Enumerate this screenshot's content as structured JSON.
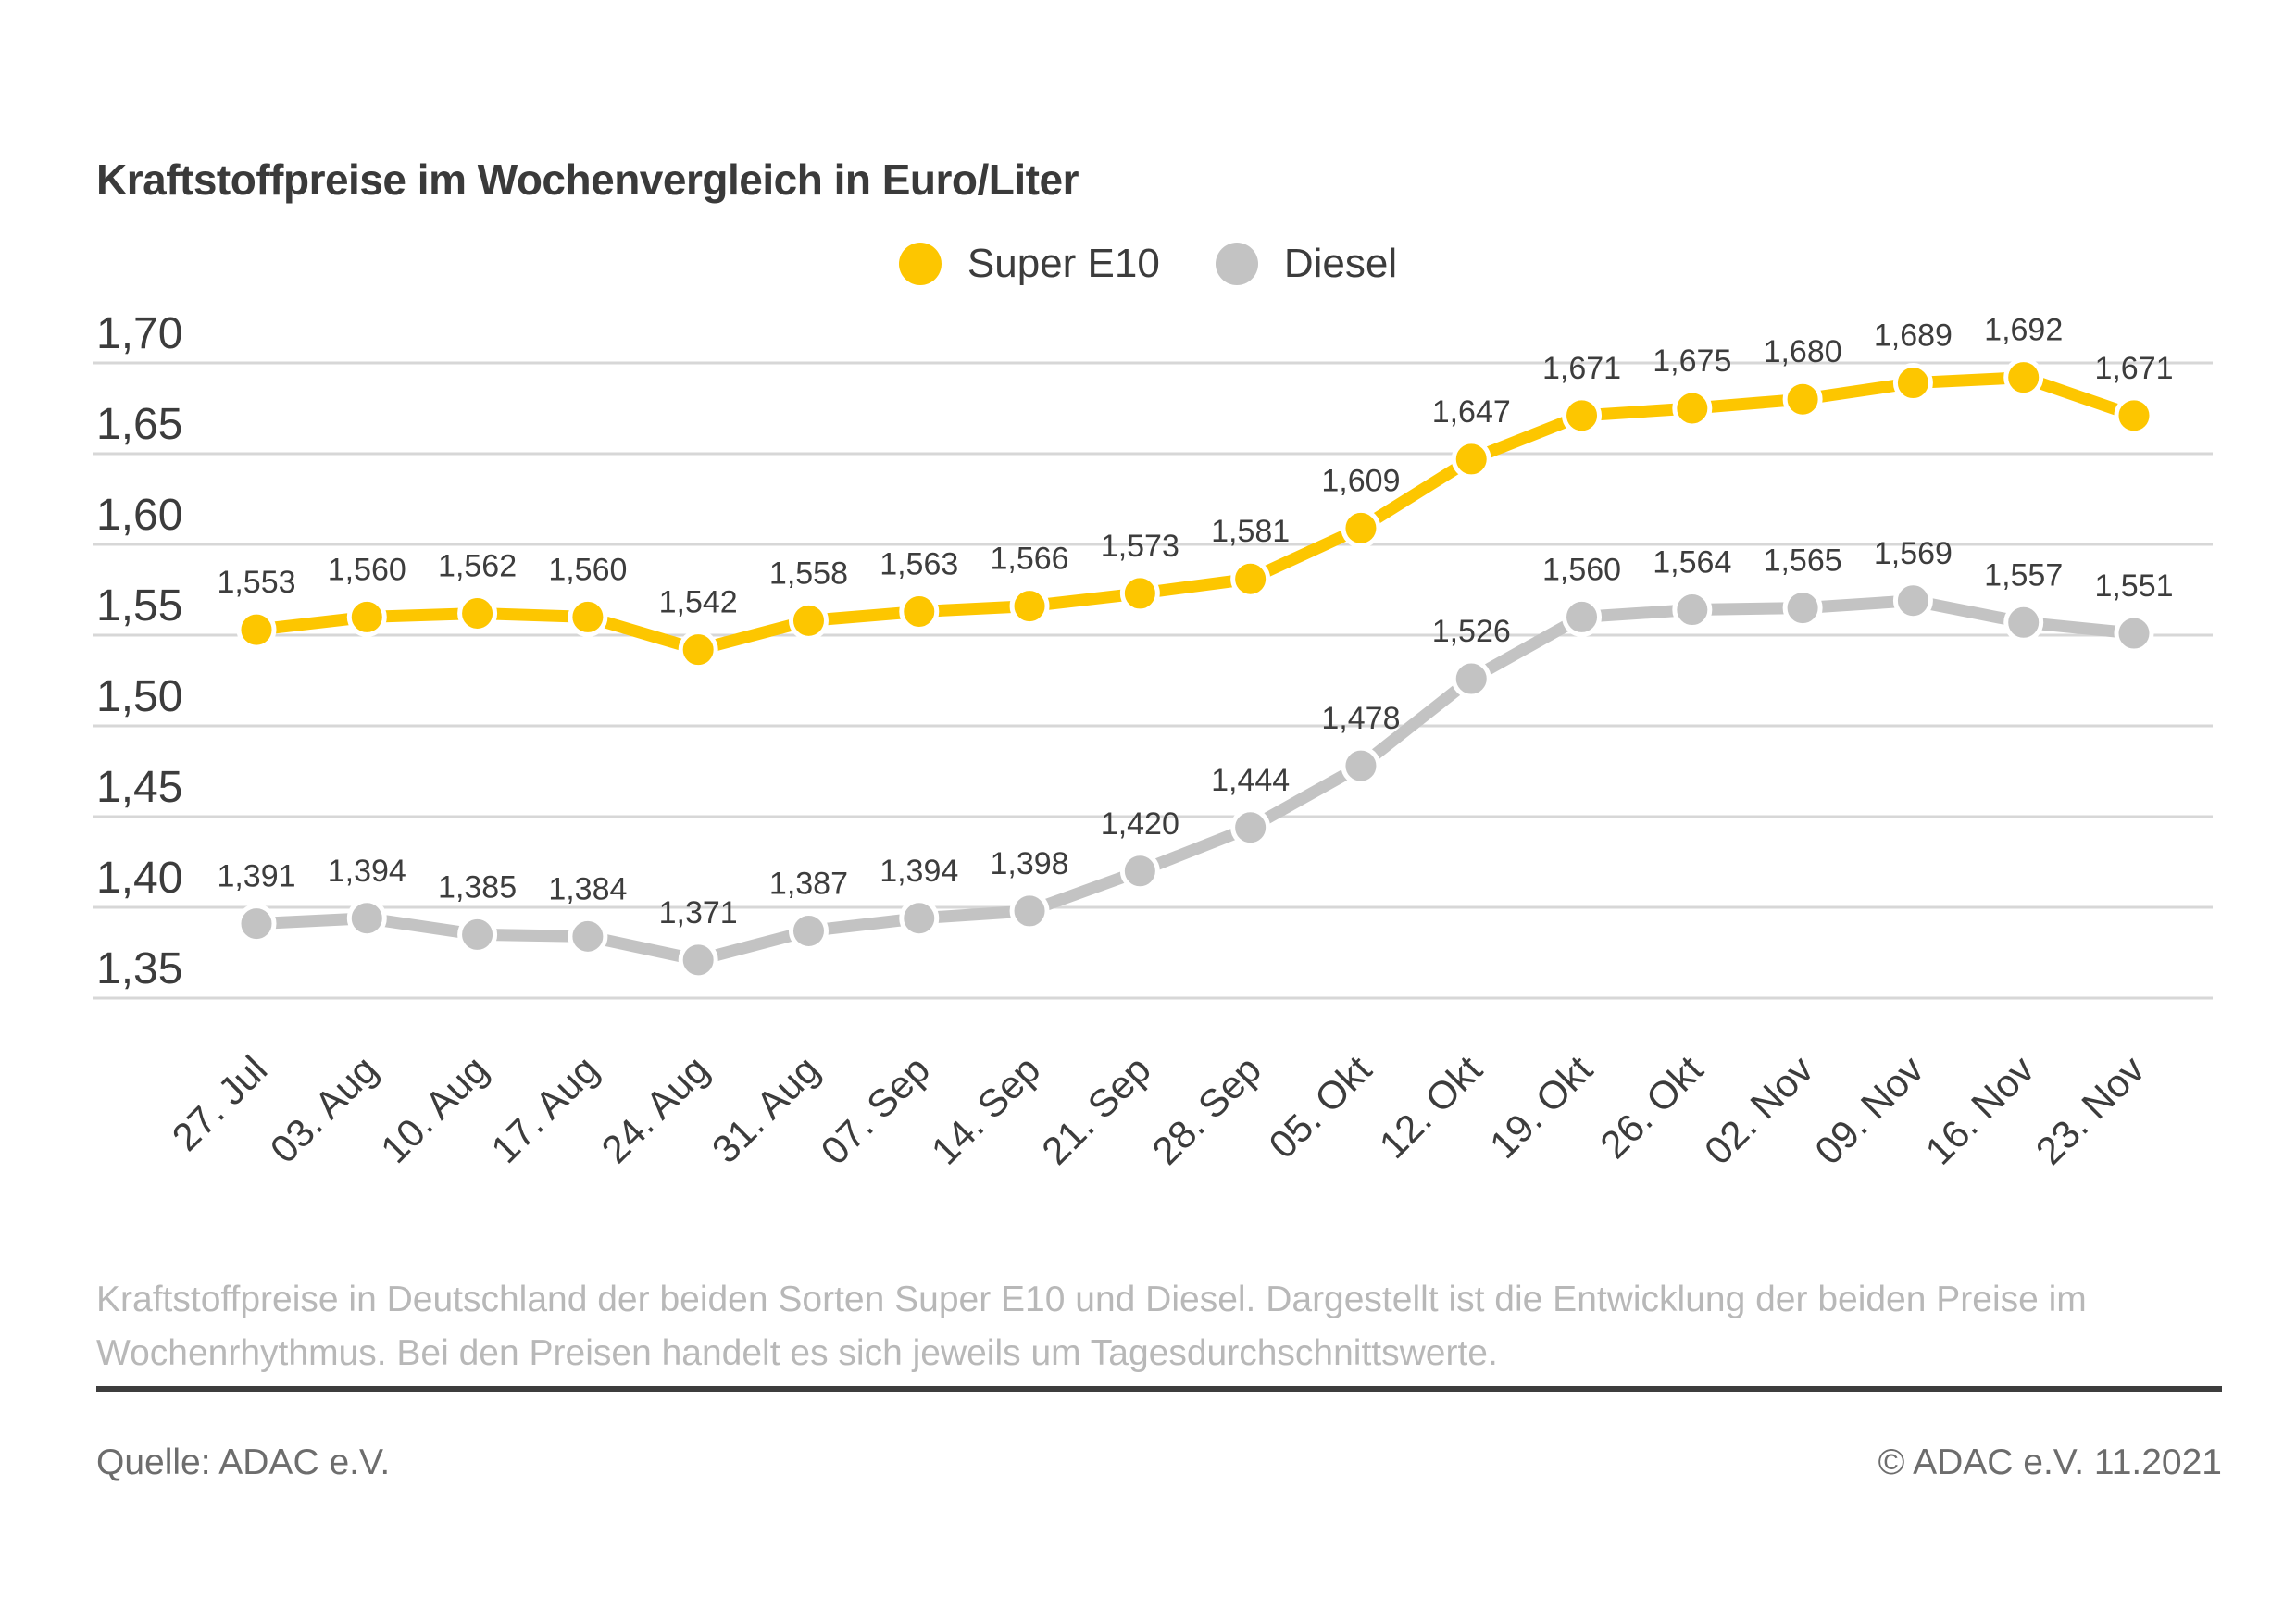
{
  "header": {
    "title": "Kraftstoffpreise im Wochenvergleich in Euro/Liter"
  },
  "chart_data": {
    "type": "line",
    "title": "Kraftstoffpreise im Wochenvergleich in Euro/Liter",
    "unit": "Euro/Liter",
    "categories": [
      "27. Jul",
      "03. Aug",
      "10. Aug",
      "17. Aug",
      "24. Aug",
      "31. Aug",
      "07. Sep",
      "14. Sep",
      "21. Sep",
      "28. Sep",
      "05. Okt",
      "12. Okt",
      "19. Okt",
      "26. Okt",
      "02. Nov",
      "09. Nov",
      "16. Nov",
      "23. Nov"
    ],
    "series": [
      {
        "name": "Super E10",
        "color": "#FDC600",
        "values": [
          1.553,
          1.56,
          1.562,
          1.56,
          1.542,
          1.558,
          1.563,
          1.566,
          1.573,
          1.581,
          1.609,
          1.647,
          1.671,
          1.675,
          1.68,
          1.689,
          1.692,
          1.671
        ],
        "labels": [
          "1,553",
          "1,560",
          "1,562",
          "1,560",
          "1,542",
          "1,558",
          "1,563",
          "1,566",
          "1,573",
          "1,581",
          "1,609",
          "1,647",
          "1,671",
          "1,675",
          "1,680",
          "1,689",
          "1,692",
          "1,671"
        ]
      },
      {
        "name": "Diesel",
        "color": "#C3C3C3",
        "values": [
          1.391,
          1.394,
          1.385,
          1.384,
          1.371,
          1.387,
          1.394,
          1.398,
          1.42,
          1.444,
          1.478,
          1.526,
          1.56,
          1.564,
          1.565,
          1.569,
          1.557,
          1.551
        ],
        "labels": [
          "1,391",
          "1,394",
          "1,385",
          "1,384",
          "1,371",
          "1,387",
          "1,394",
          "1,398",
          "1,420",
          "1,444",
          "1,478",
          "1,526",
          "1,560",
          "1,564",
          "1,565",
          "1,569",
          "1,557",
          "1,551"
        ]
      }
    ],
    "ylim": [
      1.35,
      1.7
    ],
    "ytick_step": 0.05,
    "yticks": [
      "1,70",
      "1,65",
      "1,60",
      "1,55",
      "1,50",
      "1,45",
      "1,40",
      "1,35"
    ],
    "xlabel": "",
    "ylabel": "",
    "grid": "horizontal",
    "legend_position": "top-center",
    "colors": {
      "grid_line": "#D7D7D7",
      "text": "#3C3C3C",
      "data_label": "#3D3D3D",
      "description_text": "#B8B8B8",
      "source_text": "#6D6D6D",
      "rule": "#3D3D3D"
    }
  },
  "footer": {
    "description": "Kraftstoffpreise in Deutschland der beiden Sorten Super E10 und Diesel. Dargestellt ist die Entwicklung der beiden Preise im Wochenrhythmus. Bei den Preisen handelt es sich jeweils um Tagesdurchschnittswerte.",
    "source": "Quelle: ADAC e.V.",
    "copyright": "© ADAC e.V. 11.2021"
  }
}
